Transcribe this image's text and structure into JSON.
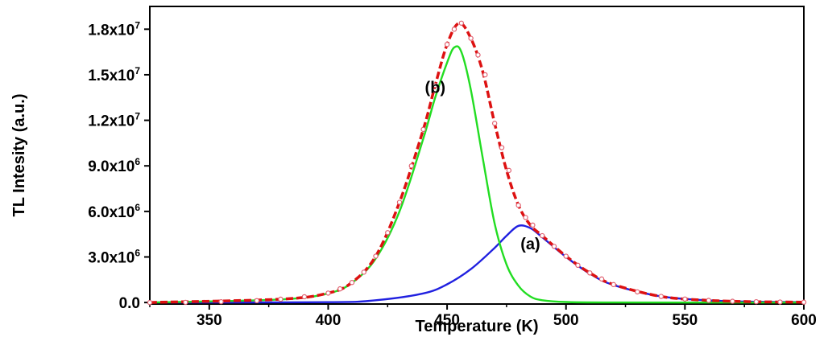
{
  "chart_data": {
    "type": "line",
    "xlabel": "Temperature (K)",
    "ylabel": "TL Intesity (a.u.)",
    "xlim": [
      325,
      600
    ],
    "ylim": [
      -100000,
      19500000
    ],
    "x_ticks": [
      350,
      400,
      450,
      500,
      550,
      600
    ],
    "x_tick_labels": [
      "350",
      "400",
      "450",
      "500",
      "550",
      "600"
    ],
    "y_ticks": [
      {
        "value": 0,
        "mantissa": "0.0",
        "exponent": ""
      },
      {
        "value": 3000000,
        "mantissa": "3.0x10",
        "exponent": "6"
      },
      {
        "value": 6000000,
        "mantissa": "6.0x10",
        "exponent": "6"
      },
      {
        "value": 9000000,
        "mantissa": "9.0x10",
        "exponent": "6"
      },
      {
        "value": 12000000,
        "mantissa": "1.2x10",
        "exponent": "7"
      },
      {
        "value": 15000000,
        "mantissa": "1.5x10",
        "exponent": "7"
      },
      {
        "value": 18000000,
        "mantissa": "1.8x10",
        "exponent": "7"
      }
    ],
    "grid": false,
    "series": [
      {
        "key": "peak-a",
        "color": "#2020e0",
        "style": "solid",
        "x": [
          325,
          400,
          420,
          440,
          450,
          460,
          470,
          475,
          480,
          485,
          490,
          500,
          510,
          520,
          540,
          560,
          580,
          600
        ],
        "values": [
          0,
          20000,
          150000,
          600000,
          1200000,
          2200000,
          3600000,
          4400000,
          5050000,
          4900000,
          4300000,
          3000000,
          1900000,
          1150000,
          400000,
          140000,
          50000,
          20000
        ]
      },
      {
        "key": "peak-b",
        "color": "#22dd22",
        "style": "solid",
        "x": [
          325,
          380,
          400,
          410,
          420,
          430,
          440,
          445,
          450,
          453,
          456,
          460,
          465,
          470,
          475,
          480,
          485,
          490,
          500,
          520,
          600
        ],
        "values": [
          0,
          200000,
          600000,
          1300000,
          2900000,
          6000000,
          10800000,
          13500000,
          15800000,
          16800000,
          16500000,
          14000000,
          9500000,
          5200000,
          2500000,
          1100000,
          400000,
          150000,
          30000,
          0,
          0
        ]
      },
      {
        "key": "fit",
        "color": "#dd1111",
        "style": "dashed",
        "x": [
          325,
          380,
          400,
          410,
          420,
          430,
          440,
          445,
          450,
          455,
          460,
          465,
          470,
          475,
          480,
          485,
          490,
          500,
          510,
          520,
          540,
          560,
          580,
          600
        ],
        "values": [
          0,
          220000,
          620000,
          1320000,
          3050000,
          6600000,
          11400000,
          14300000,
          17000000,
          18400000,
          17400000,
          15200000,
          11800000,
          8700000,
          6400000,
          5100000,
          4400000,
          3050000,
          1950000,
          1180000,
          400000,
          140000,
          50000,
          20000
        ]
      },
      {
        "key": "experimental",
        "color": "#e06070",
        "style": "markers",
        "x": [
          325,
          340,
          355,
          370,
          380,
          390,
          400,
          405,
          410,
          415,
          420,
          425,
          430,
          435,
          440,
          445,
          450,
          453,
          456,
          460,
          463,
          466,
          470,
          473,
          476,
          480,
          483,
          486,
          490,
          495,
          500,
          505,
          510,
          515,
          520,
          530,
          540,
          550,
          560,
          570,
          580,
          590,
          600
        ],
        "values": [
          0,
          10000,
          50000,
          120000,
          220000,
          380000,
          620000,
          900000,
          1320000,
          2000000,
          3050000,
          4600000,
          6600000,
          9000000,
          11400000,
          14300000,
          17000000,
          18000000,
          18400000,
          17400000,
          16300000,
          15000000,
          11800000,
          10200000,
          8700000,
          6400000,
          5600000,
          5100000,
          4400000,
          3700000,
          3050000,
          2450000,
          1950000,
          1550000,
          1180000,
          700000,
          400000,
          230000,
          140000,
          80000,
          50000,
          30000,
          20000
        ]
      }
    ],
    "annotations": [
      {
        "text": "(a)",
        "x": 485,
        "y": 3500000
      },
      {
        "text": "(b)",
        "x": 445,
        "y": 13800000
      }
    ]
  }
}
